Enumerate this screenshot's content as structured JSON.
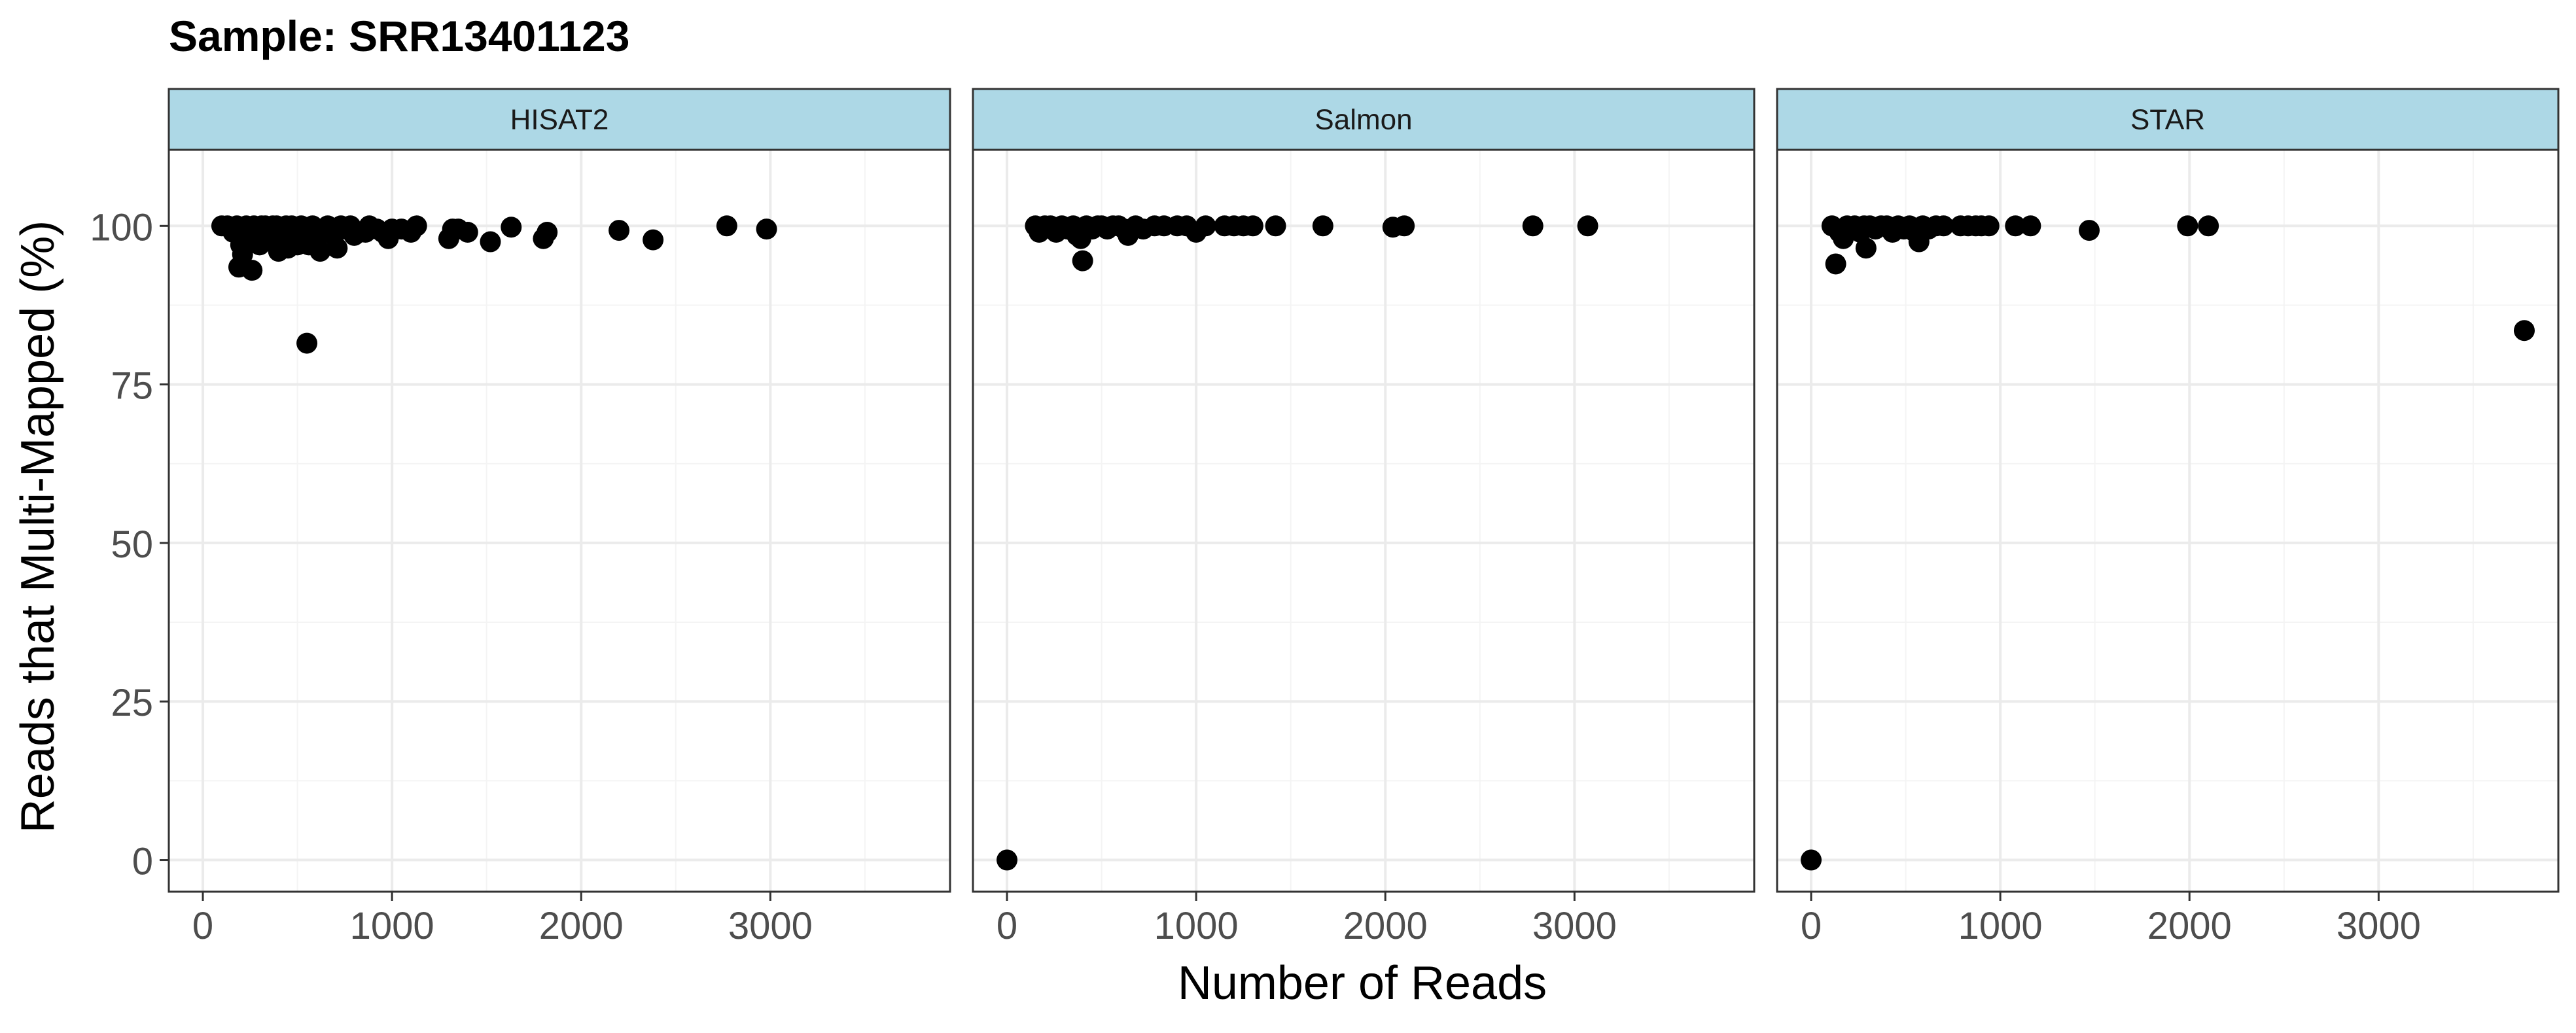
{
  "chart_data": {
    "type": "scatter",
    "title": "Sample: SRR13401123",
    "xlabel": "Number of Reads",
    "ylabel": "Reads that Multi-Mapped (%)",
    "xlim": [
      -180,
      3950
    ],
    "ylim": [
      -5,
      112
    ],
    "xticks": [
      0,
      1000,
      2000,
      3000
    ],
    "xtick_labels": [
      "0",
      "1000",
      "2000",
      "3000"
    ],
    "yticks": [
      0,
      25,
      50,
      75,
      100
    ],
    "ytick_labels": [
      "0",
      "25",
      "50",
      "75",
      "100"
    ],
    "grid": true,
    "legend": "none",
    "colors": {
      "point": "#000000",
      "strip_fill": "#add8e6",
      "panel_border": "#333333",
      "grid_major": "#ebebeb",
      "grid_minor": "#f4f4f4"
    },
    "facets": [
      {
        "label": "HISAT2",
        "points": [
          [
            100,
            100
          ],
          [
            130,
            100
          ],
          [
            160,
            99
          ],
          [
            180,
            100
          ],
          [
            190,
            93.5
          ],
          [
            200,
            97
          ],
          [
            210,
            95.5
          ],
          [
            230,
            100
          ],
          [
            250,
            98.5
          ],
          [
            260,
            93
          ],
          [
            270,
            100
          ],
          [
            290,
            99
          ],
          [
            300,
            97
          ],
          [
            310,
            100
          ],
          [
            330,
            100
          ],
          [
            350,
            98.5
          ],
          [
            370,
            100
          ],
          [
            390,
            100
          ],
          [
            400,
            96
          ],
          [
            420,
            98
          ],
          [
            440,
            100
          ],
          [
            450,
            96.5
          ],
          [
            470,
            100
          ],
          [
            500,
            97
          ],
          [
            520,
            100
          ],
          [
            540,
            99
          ],
          [
            550,
            81.5
          ],
          [
            560,
            97
          ],
          [
            580,
            100
          ],
          [
            600,
            98
          ],
          [
            620,
            96
          ],
          [
            640,
            99.5
          ],
          [
            660,
            100
          ],
          [
            690,
            98.5
          ],
          [
            710,
            96.5
          ],
          [
            730,
            100
          ],
          [
            750,
            99.5
          ],
          [
            780,
            100
          ],
          [
            800,
            98.5
          ],
          [
            830,
            99
          ],
          [
            860,
            99
          ],
          [
            880,
            100
          ],
          [
            920,
            99.5
          ],
          [
            950,
            99
          ],
          [
            980,
            98
          ],
          [
            1000,
            99.5
          ],
          [
            1050,
            99.5
          ],
          [
            1100,
            99
          ],
          [
            1130,
            100
          ],
          [
            1300,
            98
          ],
          [
            1320,
            99.5
          ],
          [
            1350,
            99.5
          ],
          [
            1400,
            99
          ],
          [
            1520,
            97.5
          ],
          [
            1630,
            99.8
          ],
          [
            1800,
            98
          ],
          [
            1820,
            99
          ],
          [
            2200,
            99.3
          ],
          [
            2380,
            97.8
          ],
          [
            2770,
            100
          ],
          [
            2980,
            99.5
          ]
        ]
      },
      {
        "label": "Salmon",
        "points": [
          [
            0,
            0
          ],
          [
            150,
            100
          ],
          [
            170,
            99
          ],
          [
            200,
            100
          ],
          [
            230,
            100
          ],
          [
            260,
            99
          ],
          [
            290,
            100
          ],
          [
            320,
            99.5
          ],
          [
            350,
            100
          ],
          [
            370,
            98.5
          ],
          [
            390,
            98
          ],
          [
            400,
            94.5
          ],
          [
            420,
            100
          ],
          [
            450,
            99.5
          ],
          [
            480,
            100
          ],
          [
            500,
            100
          ],
          [
            530,
            99.5
          ],
          [
            560,
            100
          ],
          [
            590,
            100
          ],
          [
            620,
            99.5
          ],
          [
            640,
            98.5
          ],
          [
            680,
            100
          ],
          [
            720,
            99.5
          ],
          [
            780,
            100
          ],
          [
            830,
            100
          ],
          [
            900,
            100
          ],
          [
            950,
            100
          ],
          [
            1000,
            99
          ],
          [
            1050,
            100
          ],
          [
            1150,
            100
          ],
          [
            1200,
            100
          ],
          [
            1250,
            100
          ],
          [
            1300,
            100
          ],
          [
            1420,
            100
          ],
          [
            1670,
            100
          ],
          [
            2040,
            99.8
          ],
          [
            2100,
            100
          ],
          [
            2780,
            100
          ],
          [
            3070,
            100
          ]
        ]
      },
      {
        "label": "STAR",
        "points": [
          [
            0,
            0
          ],
          [
            110,
            100
          ],
          [
            130,
            94
          ],
          [
            150,
            99
          ],
          [
            170,
            98
          ],
          [
            190,
            100
          ],
          [
            210,
            99.5
          ],
          [
            230,
            100
          ],
          [
            260,
            99
          ],
          [
            280,
            100
          ],
          [
            290,
            96.5
          ],
          [
            310,
            100
          ],
          [
            340,
            99.5
          ],
          [
            370,
            100
          ],
          [
            400,
            100
          ],
          [
            430,
            99
          ],
          [
            460,
            100
          ],
          [
            490,
            99.5
          ],
          [
            520,
            100
          ],
          [
            550,
            99
          ],
          [
            570,
            97.5
          ],
          [
            590,
            100
          ],
          [
            620,
            99.5
          ],
          [
            660,
            100
          ],
          [
            700,
            100
          ],
          [
            790,
            100
          ],
          [
            830,
            100
          ],
          [
            870,
            100
          ],
          [
            900,
            100
          ],
          [
            940,
            100
          ],
          [
            1080,
            100
          ],
          [
            1160,
            100
          ],
          [
            1470,
            99.3
          ],
          [
            1990,
            100
          ],
          [
            2100,
            100
          ],
          [
            3770,
            83.5
          ]
        ]
      }
    ]
  }
}
